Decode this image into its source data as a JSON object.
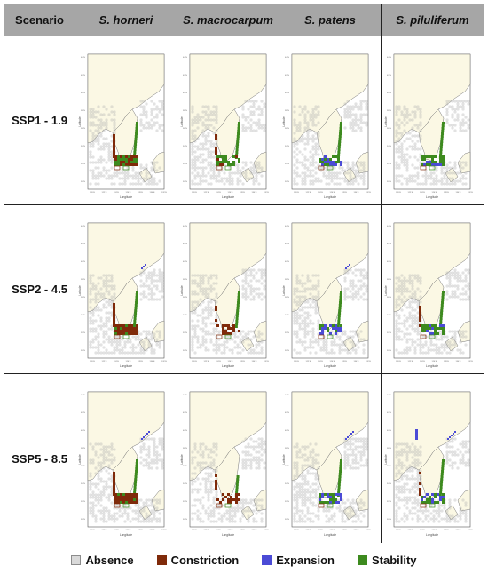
{
  "header": {
    "scenario_label": "Scenario",
    "species": [
      "S. horneri",
      "S. macrocarpum",
      "S. patens",
      "S. piluliferum"
    ]
  },
  "scenarios": [
    "SSP1 - 1.9",
    "SSP2 - 4.5",
    "SSP5 - 8.5"
  ],
  "map_axis": {
    "xlabel": "Longitude",
    "ylabel": "Latitude",
    "lon_ticks": [
      "120°E",
      "122°E",
      "124°E",
      "126°E",
      "128°E",
      "130°E",
      "132°E"
    ],
    "lat_ticks": [
      "44°N",
      "42°N",
      "40°N",
      "38°N",
      "36°N",
      "34°N",
      "32°N",
      "30°N"
    ]
  },
  "legend": [
    {
      "label": "Absence",
      "color": "#d9d9d9",
      "border": "#8c8c8c"
    },
    {
      "label": "Constriction",
      "color": "#7f2a0a",
      "border": "#7f2a0a"
    },
    {
      "label": "Expansion",
      "color": "#4b4bd6",
      "border": "#4b4bd6"
    },
    {
      "label": "Stability",
      "color": "#3d8a1e",
      "border": "#3d8a1e"
    }
  ],
  "colors": {
    "land": "#fbf8e4",
    "sea": "#ffffff",
    "absence": "#d9d9d9",
    "constriction": "#7f2a0a",
    "expansion": "#4b4bd6",
    "stability": "#3d8a1e",
    "header_bg": "#a6a6a6"
  }
}
